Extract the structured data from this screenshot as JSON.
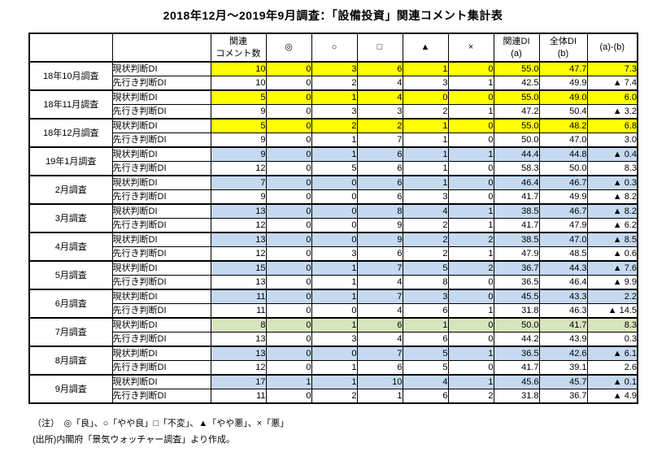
{
  "title": "2018年12月～2019年9月調査：「設備投資」関連コメント集計表",
  "colors": {
    "highlight_yellow": "#FFFF00",
    "highlight_blue": "#C5D9F1",
    "highlight_green": "#D7E4BD",
    "border": "#000000"
  },
  "table": {
    "headers": {
      "comments": [
        "関連",
        "コメント数"
      ],
      "symbols": [
        "◎",
        "○",
        "□",
        "▲",
        "×"
      ],
      "related_di": [
        "関連DI",
        "(a)"
      ],
      "overall_di": [
        "全体DI",
        "(b)"
      ],
      "diff": "(a)-(b)"
    },
    "row_labels": {
      "current": "現状判断DI",
      "outlook": "先行き判断DI"
    },
    "groups": [
      {
        "month": "18年10月調査",
        "current": {
          "highlight": "yellow",
          "values": [
            "10",
            "0",
            "3",
            "6",
            "1",
            "0",
            "55.0",
            "47.7",
            "7.3"
          ]
        },
        "outlook": {
          "highlight": "none",
          "values": [
            "10",
            "0",
            "2",
            "4",
            "3",
            "1",
            "42.5",
            "49.9",
            "▲ 7.4"
          ]
        }
      },
      {
        "month": "18年11月調査",
        "current": {
          "highlight": "yellow",
          "values": [
            "5",
            "0",
            "1",
            "4",
            "0",
            "0",
            "55.0",
            "49.0",
            "6.0"
          ]
        },
        "outlook": {
          "highlight": "none",
          "values": [
            "9",
            "0",
            "3",
            "3",
            "2",
            "1",
            "47.2",
            "50.4",
            "▲ 3.2"
          ]
        }
      },
      {
        "month": "18年12月調査",
        "current": {
          "highlight": "yellow",
          "values": [
            "5",
            "0",
            "2",
            "2",
            "1",
            "0",
            "55.0",
            "48.2",
            "6.8"
          ]
        },
        "outlook": {
          "highlight": "none",
          "values": [
            "9",
            "0",
            "1",
            "7",
            "1",
            "0",
            "50.0",
            "47.0",
            "3.0"
          ]
        }
      },
      {
        "month": "19年1月調査",
        "current": {
          "highlight": "blue",
          "values": [
            "9",
            "0",
            "1",
            "6",
            "1",
            "1",
            "44.4",
            "44.8",
            "▲ 0.4"
          ]
        },
        "outlook": {
          "highlight": "none",
          "values": [
            "12",
            "0",
            "5",
            "6",
            "1",
            "0",
            "58.3",
            "50.0",
            "8.3"
          ]
        }
      },
      {
        "month": "2月調査",
        "current": {
          "highlight": "blue",
          "values": [
            "7",
            "0",
            "0",
            "6",
            "1",
            "0",
            "46.4",
            "46.7",
            "▲ 0.3"
          ]
        },
        "outlook": {
          "highlight": "none",
          "values": [
            "9",
            "0",
            "0",
            "6",
            "3",
            "0",
            "41.7",
            "49.9",
            "▲ 8.2"
          ]
        }
      },
      {
        "month": "3月調査",
        "current": {
          "highlight": "blue",
          "values": [
            "13",
            "0",
            "0",
            "8",
            "4",
            "1",
            "38.5",
            "46.7",
            "▲ 8.2"
          ]
        },
        "outlook": {
          "highlight": "none",
          "values": [
            "12",
            "0",
            "0",
            "9",
            "2",
            "1",
            "41.7",
            "47.9",
            "▲ 6.2"
          ]
        }
      },
      {
        "month": "4月調査",
        "current": {
          "highlight": "blue",
          "values": [
            "13",
            "0",
            "0",
            "9",
            "2",
            "2",
            "38.5",
            "47.0",
            "▲ 8.5"
          ]
        },
        "outlook": {
          "highlight": "none",
          "values": [
            "12",
            "0",
            "3",
            "6",
            "2",
            "1",
            "47.9",
            "48.5",
            "▲ 0.6"
          ]
        }
      },
      {
        "month": "5月調査",
        "current": {
          "highlight": "blue",
          "values": [
            "15",
            "0",
            "1",
            "7",
            "5",
            "2",
            "36.7",
            "44.3",
            "▲ 7.6"
          ]
        },
        "outlook": {
          "highlight": "none",
          "values": [
            "13",
            "0",
            "1",
            "4",
            "8",
            "0",
            "36.5",
            "46.4",
            "▲ 9.9"
          ]
        }
      },
      {
        "month": "6月調査",
        "current": {
          "highlight": "blue",
          "values": [
            "11",
            "0",
            "1",
            "7",
            "3",
            "0",
            "45.5",
            "43.3",
            "2.2"
          ]
        },
        "outlook": {
          "highlight": "none",
          "values": [
            "11",
            "0",
            "0",
            "4",
            "6",
            "1",
            "31.8",
            "46.3",
            "▲ 14.5"
          ]
        }
      },
      {
        "month": "7月調査",
        "current": {
          "highlight": "green",
          "values": [
            "8",
            "0",
            "1",
            "6",
            "1",
            "0",
            "50.0",
            "41.7",
            "8.3"
          ]
        },
        "outlook": {
          "highlight": "none",
          "values": [
            "13",
            "0",
            "3",
            "4",
            "6",
            "0",
            "44.2",
            "43.9",
            "0.3"
          ]
        }
      },
      {
        "month": "8月調査",
        "current": {
          "highlight": "blue",
          "values": [
            "13",
            "0",
            "0",
            "7",
            "5",
            "1",
            "36.5",
            "42.6",
            "▲ 6.1"
          ]
        },
        "outlook": {
          "highlight": "none",
          "values": [
            "12",
            "0",
            "1",
            "6",
            "5",
            "0",
            "41.7",
            "39.1",
            "2.6"
          ]
        }
      },
      {
        "month": "9月調査",
        "current": {
          "highlight": "blue",
          "values": [
            "17",
            "1",
            "1",
            "10",
            "4",
            "1",
            "45.6",
            "45.7",
            "▲ 0.1"
          ]
        },
        "outlook": {
          "highlight": "none",
          "values": [
            "11",
            "0",
            "2",
            "1",
            "6",
            "2",
            "31.8",
            "36.7",
            "▲ 4.9"
          ]
        }
      }
    ]
  },
  "footnotes": [
    "（注）　◎「良」、○「やや良」□「不変」、▲「やや悪」、×「悪」",
    "(出所)内閣府「景気ウォッチャー調査」より作成。"
  ]
}
